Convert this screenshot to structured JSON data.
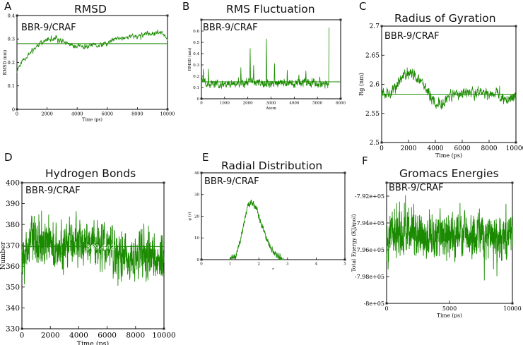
{
  "figure": {
    "colors": {
      "series": "#1a8a00",
      "axis": "#000000",
      "background": "#ffffff"
    }
  },
  "chart_data": [
    {
      "id": "A",
      "type": "line",
      "letter": "A",
      "title": "RMSD",
      "label": "BBR-9/CRAF",
      "xlabel": "Time (ps)",
      "ylabel": "RMSD (nm)",
      "xlim": [
        0,
        10000
      ],
      "ylim": [
        0,
        0.4
      ],
      "xticks": [
        0,
        2000,
        4000,
        6000,
        8000,
        10000
      ],
      "yticks": [
        0,
        0.1,
        0.2,
        0.3,
        0.4
      ],
      "yticklabels": [
        "0",
        "0.1",
        "0.2",
        "0.3",
        "0.4"
      ],
      "avg_line": 0.28,
      "grid": false,
      "trace": {
        "start": 0,
        "end": 10000,
        "n": 520,
        "noise": 0.008,
        "spike": 0.012,
        "seed": 11,
        "anchors": [
          [
            0,
            0.16
          ],
          [
            100,
            0.18
          ],
          [
            400,
            0.21
          ],
          [
            1000,
            0.25
          ],
          [
            1500,
            0.28
          ],
          [
            2000,
            0.295
          ],
          [
            2500,
            0.3
          ],
          [
            3000,
            0.29
          ],
          [
            3500,
            0.275
          ],
          [
            4000,
            0.27
          ],
          [
            4500,
            0.265
          ],
          [
            5000,
            0.27
          ],
          [
            5500,
            0.27
          ],
          [
            6000,
            0.28
          ],
          [
            6500,
            0.3
          ],
          [
            7000,
            0.305
          ],
          [
            7500,
            0.31
          ],
          [
            8000,
            0.31
          ],
          [
            8500,
            0.32
          ],
          [
            9000,
            0.325
          ],
          [
            9400,
            0.33
          ],
          [
            9700,
            0.32
          ],
          [
            10000,
            0.31
          ]
        ]
      }
    },
    {
      "id": "B",
      "type": "line",
      "letter": "B",
      "title": "RMS Fluctuation",
      "label": "BBR-9/CRAF",
      "xlabel": "Atom",
      "ylabel": "RMSD (nm)",
      "xlim": [
        0,
        6000
      ],
      "ylim": [
        0,
        0.7
      ],
      "xticks": [
        0,
        1000,
        2000,
        3000,
        4000,
        5000,
        6000
      ],
      "yticks": [
        0,
        0.1,
        0.2,
        0.3,
        0.4,
        0.5,
        0.6
      ],
      "yticklabels": [
        "0",
        "0.1",
        "0.2",
        "0.3",
        "0.4",
        "0.5",
        "0.6"
      ],
      "avg_line": 0.15,
      "grid": false,
      "trace": {
        "start": 0,
        "end": 5500,
        "n": 700,
        "noise": 0.025,
        "spike": 0.02,
        "seed": 23,
        "anchors": [
          [
            0,
            0.2
          ],
          [
            200,
            0.14
          ],
          [
            700,
            0.13
          ],
          [
            1000,
            0.14
          ],
          [
            1500,
            0.13
          ],
          [
            2000,
            0.15
          ],
          [
            2500,
            0.14
          ],
          [
            3000,
            0.13
          ],
          [
            3500,
            0.14
          ],
          [
            4000,
            0.13
          ],
          [
            4500,
            0.15
          ],
          [
            5000,
            0.14
          ],
          [
            5400,
            0.13
          ],
          [
            5500,
            0.14
          ]
        ],
        "peaks": [
          [
            80,
            0.27
          ],
          [
            300,
            0.27
          ],
          [
            1700,
            0.28
          ],
          [
            2100,
            0.46
          ],
          [
            2250,
            0.3
          ],
          [
            2800,
            0.56
          ],
          [
            3150,
            0.35
          ],
          [
            3700,
            0.27
          ],
          [
            4200,
            0.22
          ],
          [
            4500,
            0.25
          ],
          [
            5100,
            0.2
          ],
          [
            5500,
            0.63
          ]
        ]
      }
    },
    {
      "id": "C",
      "type": "line",
      "letter": "C",
      "title": "Radius of Gyration",
      "label": "BBR-9/CRAF",
      "xlabel": "Time (ps)",
      "ylabel": "Rg (nm)",
      "xlim": [
        0,
        10000
      ],
      "ylim": [
        2.5,
        2.7
      ],
      "xticks": [
        0,
        2000,
        4000,
        6000,
        8000,
        10000
      ],
      "yticks": [
        2.5,
        2.55,
        2.6,
        2.65,
        2.7
      ],
      "yticklabels": [
        "2.5",
        "2.55",
        "2.6",
        "2.65",
        "2.7"
      ],
      "avg_line": 2.583,
      "grid": false,
      "trace": {
        "start": 0,
        "end": 10000,
        "n": 600,
        "noise": 0.007,
        "spike": 0.01,
        "seed": 37,
        "anchors": [
          [
            0,
            2.59
          ],
          [
            500,
            2.585
          ],
          [
            1000,
            2.595
          ],
          [
            1500,
            2.61
          ],
          [
            2000,
            2.62
          ],
          [
            2500,
            2.615
          ],
          [
            3000,
            2.6
          ],
          [
            3500,
            2.585
          ],
          [
            4000,
            2.57
          ],
          [
            4500,
            2.565
          ],
          [
            5000,
            2.575
          ],
          [
            6000,
            2.585
          ],
          [
            7000,
            2.585
          ],
          [
            8000,
            2.585
          ],
          [
            8500,
            2.585
          ],
          [
            9000,
            2.575
          ],
          [
            9500,
            2.575
          ],
          [
            10000,
            2.58
          ]
        ]
      }
    },
    {
      "id": "D",
      "type": "line",
      "letter": "D",
      "title": "Hydrogen Bonds",
      "label": "BBR-9/CRAF",
      "xlabel": "Time (ps)",
      "ylabel": "Number",
      "xlim": [
        0,
        10000
      ],
      "ylim": [
        330,
        400
      ],
      "xticks": [
        0,
        2000,
        4000,
        6000,
        8000,
        10000
      ],
      "yticks": [
        330,
        340,
        350,
        360,
        370,
        380,
        390,
        400
      ],
      "yticklabels": [
        "330",
        "340",
        "350",
        "360",
        "370",
        "380",
        "390",
        "400"
      ],
      "avg_line": 369.442,
      "avg_label": "369.442",
      "grid": false,
      "trace": {
        "start": 0,
        "end": 10000,
        "n": 1100,
        "noise": 7.5,
        "spike": 9,
        "seed": 53,
        "anchors": [
          [
            0,
            368
          ],
          [
            1000,
            372
          ],
          [
            2000,
            371
          ],
          [
            3000,
            370
          ],
          [
            4000,
            373
          ],
          [
            5000,
            371
          ],
          [
            6000,
            368
          ],
          [
            7000,
            364
          ],
          [
            7800,
            362
          ],
          [
            8500,
            366
          ],
          [
            9000,
            366
          ],
          [
            9500,
            363
          ],
          [
            10000,
            365
          ]
        ]
      }
    },
    {
      "id": "E",
      "type": "line",
      "letter": "E",
      "title": "Radial Distribution",
      "label": "BBR-9/CRAF",
      "xlabel": "r",
      "ylabel": "g (r)",
      "xlim": [
        0,
        5
      ],
      "ylim": [
        0,
        40
      ],
      "xticks": [
        0,
        1,
        2,
        3,
        4,
        5
      ],
      "yticks": [
        0,
        10,
        20,
        30,
        40
      ],
      "yticklabels": [
        "0",
        "10",
        "20",
        "30",
        "40"
      ],
      "grid": false,
      "trace": {
        "start": 1.0,
        "end": 2.85,
        "n": 360,
        "noise": 1.1,
        "spike": 1.5,
        "seed": 71,
        "anchors": [
          [
            1.0,
            0
          ],
          [
            1.2,
            2
          ],
          [
            1.35,
            8
          ],
          [
            1.5,
            18
          ],
          [
            1.6,
            24
          ],
          [
            1.7,
            27
          ],
          [
            1.8,
            26
          ],
          [
            1.9,
            24
          ],
          [
            2.0,
            20
          ],
          [
            2.2,
            12
          ],
          [
            2.4,
            6
          ],
          [
            2.6,
            2
          ],
          [
            2.8,
            0.3
          ],
          [
            2.85,
            0
          ]
        ]
      }
    },
    {
      "id": "F",
      "type": "line",
      "letter": "F",
      "title": "Gromacs Energies",
      "label": "BBR-9/CRAF",
      "xlabel": "Time (ps)",
      "ylabel": "Total Energy (KJ/mol)",
      "xlim": [
        0,
        10000
      ],
      "ylim": [
        -800000,
        -791000
      ],
      "xticks": [
        0,
        5000,
        10000
      ],
      "yticks": [
        -800000,
        -798000,
        -796000,
        -794000,
        -792000
      ],
      "yticklabels": [
        "-8e+05",
        "-7.98e+05",
        "-7.96e+05",
        "-7.94e+05",
        "-7.92e+05"
      ],
      "grid": false,
      "trace": {
        "start": 0,
        "end": 10000,
        "n": 1000,
        "noise": 1150,
        "spike": 1400,
        "seed": 97,
        "anchors": [
          [
            0,
            -795000
          ],
          [
            2000,
            -794800
          ],
          [
            4000,
            -795100
          ],
          [
            6000,
            -794900
          ],
          [
            8000,
            -795200
          ],
          [
            10000,
            -795000
          ]
        ]
      }
    }
  ]
}
